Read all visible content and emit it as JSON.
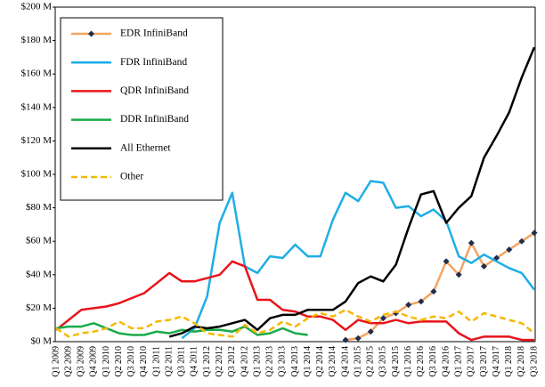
{
  "chart_data": {
    "type": "line",
    "categories": [
      "Q1 2009",
      "Q2 2009",
      "Q3 2009",
      "Q4 2009",
      "Q1 2010",
      "Q2 2010",
      "Q3 2010",
      "Q4 2010",
      "Q1 2011",
      "Q2 2011",
      "Q3 2011",
      "Q4 2011",
      "Q1 2012",
      "Q2 2012",
      "Q3 2012",
      "Q4 2012",
      "Q1 2013",
      "Q2 2013",
      "Q3 2013",
      "Q4 2013",
      "Q1 2014",
      "Q2 2014",
      "Q3 2014",
      "Q4 2014",
      "Q1 2015",
      "Q2 2015",
      "Q3 2015",
      "Q4 2015",
      "Q1 2016",
      "Q2 2016",
      "Q3 2016",
      "Q4 2016",
      "Q1 2017",
      "Q2 2017",
      "Q3 2017",
      "Q4 2017",
      "Q1 2018",
      "Q2 2018",
      "Q3 2018"
    ],
    "series": [
      {
        "name": "EDR InfiniBand",
        "color": "#f4a460",
        "markers": true,
        "values": [
          null,
          null,
          null,
          null,
          null,
          null,
          null,
          null,
          null,
          null,
          null,
          null,
          null,
          null,
          null,
          null,
          null,
          null,
          null,
          null,
          null,
          null,
          null,
          1,
          2,
          6,
          14,
          17,
          22,
          24,
          30,
          48,
          40,
          59,
          45,
          50,
          55,
          60,
          65
        ]
      },
      {
        "name": "FDR InfiniBand",
        "color": "#1eaee6",
        "values": [
          null,
          null,
          null,
          null,
          null,
          null,
          null,
          null,
          null,
          null,
          2,
          8,
          27,
          71,
          89,
          45,
          41,
          51,
          50,
          58,
          51,
          51,
          73,
          89,
          84,
          96,
          95,
          80,
          81,
          75,
          79,
          72,
          51,
          47,
          52,
          48,
          44,
          41,
          31
        ]
      },
      {
        "name": "QDR InfiniBand",
        "color": "#e8141b",
        "values": [
          7,
          13,
          19,
          20,
          21,
          23,
          26,
          29,
          35,
          41,
          36,
          36,
          38,
          40,
          48,
          45,
          25,
          25,
          19,
          18,
          15,
          15,
          13,
          7,
          13,
          11,
          11,
          13,
          11,
          12,
          12,
          12,
          5,
          1,
          3,
          3,
          3,
          1,
          1
        ]
      },
      {
        "name": "DDR InfiniBand",
        "color": "#1aaa4a",
        "values": [
          8,
          9,
          9,
          11,
          8,
          5,
          4,
          4,
          6,
          5,
          7,
          6,
          7,
          7,
          6,
          9,
          4,
          5,
          8,
          5,
          4,
          null,
          null,
          null,
          null,
          null,
          null,
          null,
          null,
          null,
          null,
          null,
          null,
          null,
          null,
          null,
          null,
          null,
          null
        ]
      },
      {
        "name": "All Ethernet",
        "color": "#000000",
        "values": [
          null,
          null,
          null,
          null,
          null,
          null,
          null,
          null,
          null,
          3,
          5,
          9,
          8,
          9,
          11,
          13,
          7,
          14,
          16,
          16,
          19,
          19,
          19,
          24,
          35,
          39,
          36,
          46,
          68,
          88,
          90,
          71,
          80,
          87,
          110,
          123,
          137,
          158,
          176
        ]
      },
      {
        "name": "Other",
        "color": "#f5b800",
        "dashed": true,
        "values": [
          8,
          3,
          5,
          6,
          8,
          12,
          8,
          8,
          12,
          13,
          15,
          11,
          5,
          4,
          3,
          10,
          5,
          7,
          12,
          9,
          14,
          17,
          15,
          19,
          15,
          12,
          16,
          18,
          15,
          13,
          15,
          14,
          18,
          12,
          17,
          15,
          13,
          11,
          5
        ]
      }
    ],
    "ylim": [
      0,
      200
    ],
    "yticks": [
      {
        "value": 0,
        "label": "$0 M"
      },
      {
        "value": 20,
        "label": "$20 M"
      },
      {
        "value": 40,
        "label": "$40 M"
      },
      {
        "value": 60,
        "label": "$60 M"
      },
      {
        "value": 80,
        "label": "$80 M"
      },
      {
        "value": 100,
        "label": "$100 M"
      },
      {
        "value": 120,
        "label": "$120 M"
      },
      {
        "value": 140,
        "label": "$140 M"
      },
      {
        "value": 160,
        "label": "$160 M"
      },
      {
        "value": 180,
        "label": "$180 M"
      },
      {
        "value": 200,
        "label": "$200 M"
      }
    ],
    "legend": "upper left"
  }
}
